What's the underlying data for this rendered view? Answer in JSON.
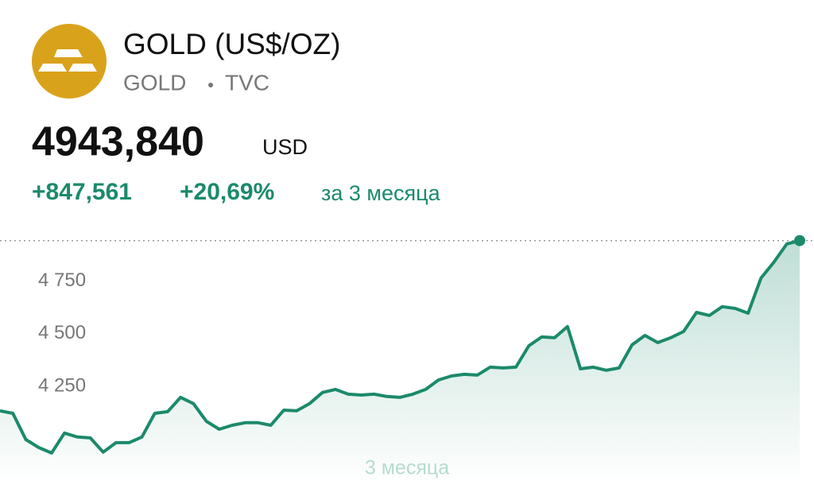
{
  "header": {
    "title": "GOLD (US$/OZ)",
    "symbol": "GOLD",
    "exchange": "TVC",
    "price": "4943,840",
    "currency": "USD",
    "change": "+847,561",
    "change_percent": "+20,69%",
    "period": "за 3 месяца"
  },
  "chart_data": {
    "type": "line",
    "period_label": "3 месяца",
    "color": "#1b8a6b",
    "values": [
      4133,
      4121,
      3996,
      3958,
      3932,
      4027,
      4008,
      4004,
      3936,
      3981,
      3981,
      4008,
      4121,
      4129,
      4197,
      4167,
      4083,
      4045,
      4064,
      4076,
      4076,
      4064,
      4136,
      4133,
      4167,
      4220,
      4235,
      4212,
      4208,
      4212,
      4201,
      4197,
      4212,
      4235,
      4280,
      4299,
      4307,
      4303,
      4341,
      4337,
      4341,
      4443,
      4485,
      4481,
      4534,
      4333,
      4341,
      4326,
      4337,
      4447,
      4492,
      4458,
      4481,
      4511,
      4602,
      4587,
      4629,
      4621,
      4598,
      4765,
      4841,
      4928,
      4943.84
    ],
    "ylim": [
      3780,
      4992
    ],
    "yticks": [
      {
        "value": 4250,
        "label": "4 250"
      },
      {
        "value": 4500,
        "label": "4 500"
      },
      {
        "value": 4750,
        "label": "4 750"
      }
    ]
  }
}
